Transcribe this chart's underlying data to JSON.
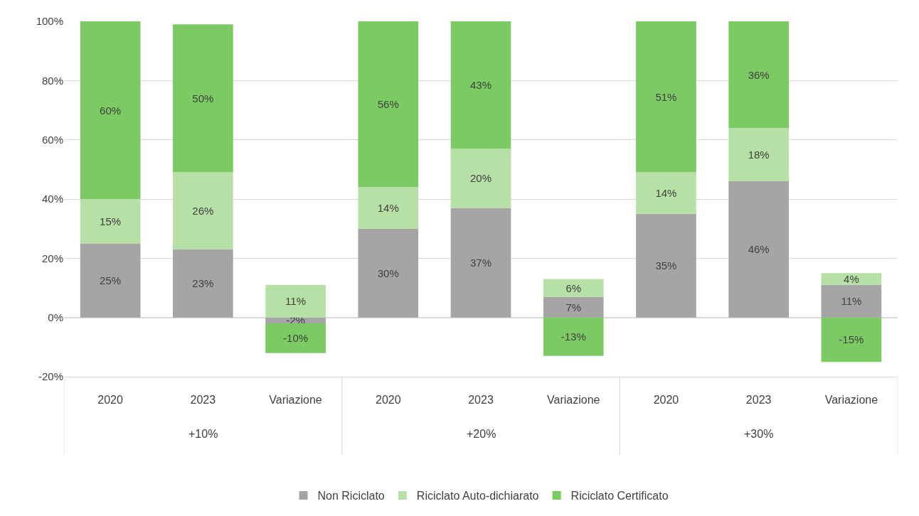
{
  "chart_data": {
    "type": "bar",
    "stacked": true,
    "categories": [
      "2020",
      "2023",
      "Variazione",
      "2020",
      "2023",
      "Variazione",
      "2020",
      "2023",
      "Variazione"
    ],
    "series": [
      {
        "name": "Non Riciclato",
        "color": "#a5a5a5",
        "values": [
          25,
          23,
          -2,
          30,
          37,
          7,
          35,
          46,
          11
        ],
        "value_labels": [
          "25%",
          "23%",
          "-2%",
          "30%",
          "37%",
          "7%",
          "35%",
          "46%",
          "11%"
        ]
      },
      {
        "name": "Riciclato Auto-dichiarato",
        "color": "#b6e0a6",
        "values": [
          15,
          26,
          11,
          14,
          20,
          6,
          14,
          18,
          4
        ],
        "value_labels": [
          "15%",
          "26%",
          "11%",
          "14%",
          "20%",
          "6%",
          "14%",
          "18%",
          "4%"
        ]
      },
      {
        "name": "Riciclato Certificato",
        "color": "#7cca64",
        "values": [
          60,
          50,
          -10,
          56,
          43,
          -13,
          51,
          36,
          -15
        ],
        "value_labels": [
          "60%",
          "50%",
          "-10%",
          "56%",
          "43%",
          "-13%",
          "51%",
          "36%",
          "-15%"
        ]
      }
    ],
    "annotations": [
      "+10%",
      "+20%",
      "+30%"
    ],
    "ylim": [
      -20,
      100
    ],
    "yticks": [
      {
        "value": -20,
        "label": "-20%"
      },
      {
        "value": 0,
        "label": "0%"
      },
      {
        "value": 20,
        "label": "20%"
      },
      {
        "value": 40,
        "label": "40%"
      },
      {
        "value": 60,
        "label": "60%"
      },
      {
        "value": 80,
        "label": "80%"
      },
      {
        "value": 100,
        "label": "100%"
      }
    ],
    "grid": "y",
    "legend": "bottom"
  }
}
